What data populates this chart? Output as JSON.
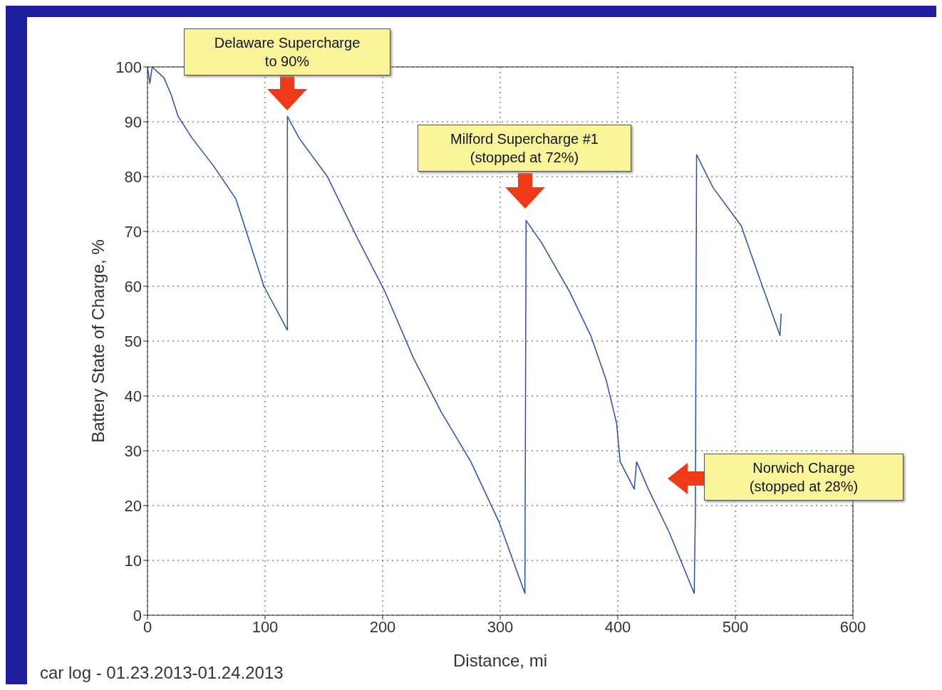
{
  "chart_data": {
    "type": "line",
    "xlabel": "Distance, mi",
    "ylabel": "Battery State of Charge, %",
    "color": "#2a4fb0",
    "x": [
      0,
      2,
      4,
      14,
      20,
      26,
      38,
      56,
      75,
      99,
      119,
      119,
      129,
      153,
      178,
      202,
      226,
      250,
      275,
      299,
      321,
      322,
      335,
      359,
      377,
      390,
      399,
      402,
      414,
      416,
      426,
      444,
      465,
      466,
      467,
      481,
      505,
      523,
      538,
      539
    ],
    "values": [
      100,
      97,
      100,
      98,
      95,
      91,
      87,
      82,
      76,
      60,
      52,
      91,
      87,
      80,
      69,
      59,
      47,
      37,
      28,
      17,
      4,
      72,
      68,
      59,
      51,
      43,
      35,
      28,
      23,
      28,
      23,
      15,
      4,
      19,
      84,
      78,
      71,
      60,
      51,
      55
    ],
    "xlim": [
      0,
      600
    ],
    "ylim": [
      0,
      100
    ],
    "xticks": [
      0,
      100,
      200,
      300,
      400,
      500,
      600
    ],
    "yticks": [
      0,
      10,
      20,
      30,
      40,
      50,
      60,
      70,
      80,
      90,
      100
    ],
    "grid": true,
    "annotations": [
      "Delaware Supercharge\nto 90%",
      "Milford Supercharge #1\n(stopped at 72%)",
      "Norwich Charge\n(stopped at 28%)",
      "car log - 01.23.2013-01.24.2013"
    ]
  }
}
